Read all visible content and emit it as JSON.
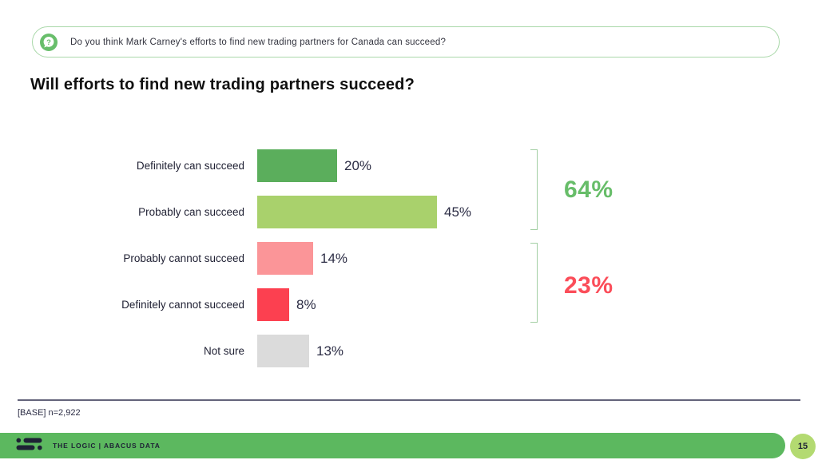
{
  "colors": {
    "banner_border": "#A9D8A9",
    "icon_green": "#68BE6B",
    "text_navy": "#2B2C44",
    "bracket": "#A3CFA4",
    "footer_green": "#5CB85F",
    "page_circle_green": "#B3DA71",
    "footer_text_navy": "#1E2235",
    "divider_gray": "#63637A"
  },
  "banner": {
    "icon": "question-bubble-icon",
    "question": "Do you think Mark Carney's efforts to find new trading partners for Canada can succeed?"
  },
  "title": "Will efforts to find new trading partners succeed?",
  "chart_data": {
    "type": "bar",
    "orientation": "horizontal",
    "categories": [
      "Definitely can succeed",
      "Probably can succeed",
      "Probably cannot succeed",
      "Definitely cannot succeed",
      "Not sure"
    ],
    "values": [
      20,
      45,
      14,
      8,
      13
    ],
    "value_labels": [
      "20%",
      "45%",
      "14%",
      "8%",
      "13%"
    ],
    "bar_colors": [
      "#5BAE5C",
      "#A9D16C",
      "#FB9598",
      "#FC4050",
      "#DBDBDB"
    ],
    "xlim": [
      0,
      100
    ],
    "grid": false,
    "legend": false,
    "groups": [
      {
        "label": "64%",
        "color": "#67BD69",
        "rows": [
          0,
          1
        ]
      },
      {
        "label": "23%",
        "color": "#FB4D59",
        "rows": [
          2,
          3
        ]
      }
    ]
  },
  "base_note": "[BASE] n=2,922",
  "footer": {
    "logo": "the-logic-logo",
    "brand": "THE LOGIC  |  ABACUS DATA",
    "page_number": "15"
  }
}
